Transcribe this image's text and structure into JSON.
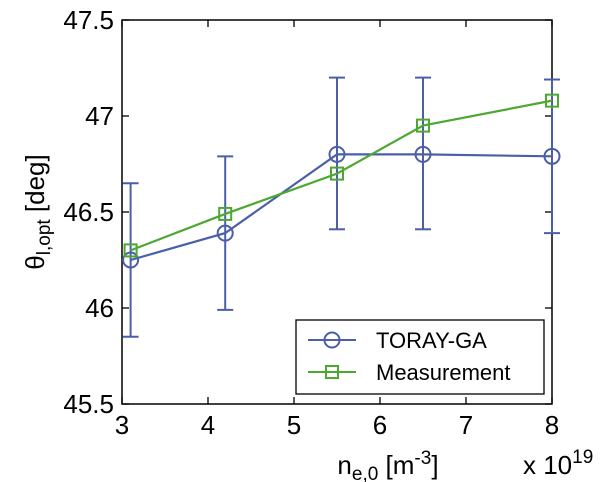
{
  "chart_data": {
    "type": "line",
    "xlabel": {
      "base": "n",
      "sub": "e,0",
      "unit_open": " [m",
      "unit_sup": "-3",
      "unit_close": "]"
    },
    "x_multiplier": {
      "base": "x 10",
      "exp": "19"
    },
    "ylabel": {
      "base": "θ",
      "sub": "l,opt",
      "unit": " [deg]"
    },
    "xlim": [
      3,
      8
    ],
    "ylim": [
      45.5,
      47.5
    ],
    "xticks": [
      "3",
      "4",
      "5",
      "6",
      "7",
      "8"
    ],
    "yticks": [
      "45.5",
      "46",
      "46.5",
      "47",
      "47.5"
    ],
    "grid": false,
    "legend_position": "bottom-right",
    "series": [
      {
        "name": "TORAY-GA",
        "marker": "circle",
        "color": "#4a5fa8",
        "x": [
          3.1,
          4.2,
          5.5,
          6.5,
          8.0
        ],
        "y": [
          46.25,
          46.39,
          46.8,
          46.8,
          46.79
        ],
        "err_low": [
          45.85,
          45.99,
          46.41,
          46.41,
          46.39
        ],
        "err_high": [
          46.65,
          46.79,
          47.2,
          47.2,
          47.19
        ]
      },
      {
        "name": "Measurement",
        "marker": "square",
        "color": "#4da832",
        "x": [
          3.1,
          4.2,
          5.5,
          6.5,
          8.0
        ],
        "y": [
          46.3,
          46.49,
          46.7,
          46.95,
          47.08
        ]
      }
    ]
  }
}
